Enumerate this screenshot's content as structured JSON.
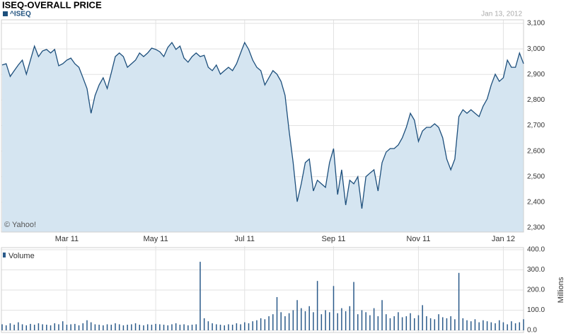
{
  "chart_data": [
    {
      "type": "area",
      "title": "ISEQ-OVERALL PRICE",
      "date": "Jan 13, 2012",
      "source": "© Yahoo!",
      "categories": [
        null,
        null,
        null,
        null,
        null,
        null,
        null,
        null,
        null,
        null,
        null,
        null,
        null,
        null,
        null,
        null,
        "Mar 11",
        null,
        null,
        null,
        null,
        null,
        null,
        null,
        null,
        null,
        null,
        null,
        null,
        null,
        null,
        null,
        null,
        null,
        null,
        null,
        null,
        null,
        "May 11",
        null,
        null,
        null,
        null,
        null,
        null,
        null,
        null,
        null,
        null,
        null,
        null,
        null,
        null,
        null,
        null,
        null,
        null,
        null,
        null,
        null,
        "Jul 11",
        null,
        null,
        null,
        null,
        null,
        null,
        null,
        null,
        null,
        null,
        null,
        null,
        null,
        null,
        null,
        null,
        null,
        null,
        null,
        null,
        null,
        "Sep 11",
        null,
        null,
        null,
        null,
        null,
        null,
        null,
        null,
        null,
        null,
        null,
        null,
        null,
        null,
        null,
        null,
        null,
        null,
        null,
        null,
        "Nov 11",
        null,
        null,
        null,
        null,
        null,
        null,
        null,
        null,
        null,
        null,
        null,
        null,
        null,
        null,
        null,
        null,
        null,
        null,
        null,
        null,
        "Jan 12",
        null,
        null,
        null,
        null,
        null
      ],
      "series": [
        {
          "name": "^ISEQ",
          "color": "#1d4f7c",
          "fill": "#d5e5f1",
          "values": [
            2937,
            2942,
            2892,
            2915,
            2937,
            2956,
            2901,
            2956,
            3011,
            2970,
            2992,
            2998,
            2984,
            2998,
            2934,
            2942,
            2956,
            2964,
            2942,
            2928,
            2887,
            2845,
            2748,
            2818,
            2859,
            2887,
            2845,
            2906,
            2970,
            2984,
            2970,
            2928,
            2942,
            2956,
            2984,
            2970,
            2984,
            3003,
            2998,
            2989,
            2970,
            3006,
            3025,
            2998,
            3011,
            2964,
            2948,
            2970,
            2984,
            2970,
            2975,
            2928,
            2915,
            2937,
            2901,
            2915,
            2928,
            2915,
            2942,
            2984,
            3025,
            2998,
            2956,
            2928,
            2915,
            2859,
            2887,
            2915,
            2901,
            2873,
            2818,
            2679,
            2555,
            2402,
            2472,
            2555,
            2569,
            2444,
            2486,
            2472,
            2458,
            2555,
            2610,
            2430,
            2527,
            2389,
            2486,
            2472,
            2500,
            2375,
            2500,
            2514,
            2527,
            2444,
            2555,
            2596,
            2610,
            2610,
            2624,
            2652,
            2693,
            2748,
            2721,
            2638,
            2679,
            2693,
            2693,
            2707,
            2693,
            2652,
            2569,
            2527,
            2569,
            2735,
            2762,
            2748,
            2762,
            2748,
            2735,
            2776,
            2804,
            2859,
            2901,
            2873,
            2887,
            2956,
            2928,
            2928,
            2984,
            2942
          ]
        }
      ],
      "ylim": [
        2300,
        3100
      ],
      "yticks": [
        {
          "value": 2300,
          "label": "2,300"
        },
        {
          "value": 2400,
          "label": "2,400"
        },
        {
          "value": 2500,
          "label": "2,500"
        },
        {
          "value": 2600,
          "label": "2,600"
        },
        {
          "value": 2700,
          "label": "2,700"
        },
        {
          "value": 2800,
          "label": "2,800"
        },
        {
          "value": 2900,
          "label": "2,900"
        },
        {
          "value": 3000,
          "label": "3,000"
        },
        {
          "value": 3100,
          "label": "3,100"
        }
      ],
      "grid": true
    },
    {
      "type": "bar",
      "y_label": "Millions",
      "series": [
        {
          "name": "Volume",
          "color": "#2a5a8a",
          "values": [
            30,
            25,
            35,
            28,
            40,
            30,
            25,
            32,
            28,
            35,
            30,
            28,
            25,
            35,
            30,
            45,
            28,
            30,
            32,
            25,
            35,
            50,
            40,
            30,
            28,
            25,
            30,
            28,
            35,
            30,
            25,
            28,
            30,
            35,
            28,
            25,
            30,
            28,
            32,
            30,
            28,
            25,
            30,
            35,
            28,
            30,
            25,
            28,
            30,
            340,
            60,
            45,
            35,
            30,
            28,
            25,
            30,
            28,
            35,
            30,
            40,
            35,
            45,
            50,
            60,
            55,
            70,
            80,
            165,
            90,
            70,
            85,
            100,
            150,
            110,
            95,
            120,
            90,
            245,
            80,
            100,
            90,
            220,
            85,
            110,
            95,
            120,
            240,
            80,
            100,
            90,
            75,
            110,
            70,
            150,
            80,
            60,
            70,
            90,
            65,
            70,
            85,
            60,
            75,
            125,
            70,
            60,
            55,
            80,
            65,
            60,
            70,
            55,
            285,
            60,
            50,
            45,
            55,
            40,
            50,
            45,
            40,
            35,
            50,
            40,
            30,
            45,
            35,
            40,
            55
          ]
        }
      ],
      "ylim": [
        0,
        400
      ],
      "yticks": [
        {
          "value": 0,
          "label": "0.0"
        },
        {
          "value": 100,
          "label": "100.0"
        },
        {
          "value": 200,
          "label": "200.0"
        },
        {
          "value": 300,
          "label": "300.0"
        },
        {
          "value": 400,
          "label": "400.0"
        }
      ],
      "grid": true
    }
  ]
}
